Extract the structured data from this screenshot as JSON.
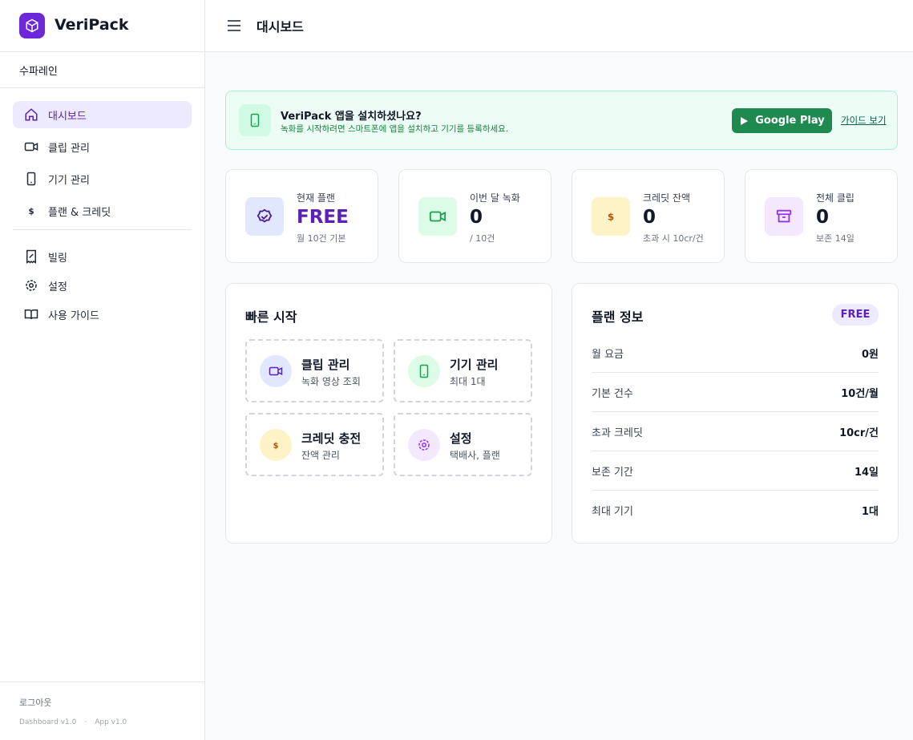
{
  "sidebar": {
    "brand": "VeriPack",
    "company": "수파레인",
    "nav": [
      {
        "label": "대시보드",
        "active": true
      },
      {
        "label": "클립 관리"
      },
      {
        "label": "기기 관리"
      },
      {
        "label": "플랜 & 크레딧"
      }
    ],
    "nav2": [
      {
        "label": "빌링"
      },
      {
        "label": "설정"
      },
      {
        "label": "사용 가이드"
      }
    ],
    "logout": "로그아웃",
    "versions": [
      "Dashboard v1.0",
      "App v1.0"
    ],
    "version_sep": "·"
  },
  "header": {
    "title": "대시보드"
  },
  "banner": {
    "title": "VeriPack 앱을 설치하셨나요?",
    "text": "녹화를 시작하려면 스마트폰에 앱을 설치하고 기기를 등록하세요.",
    "button": "Google Play",
    "link": "가이드 보기"
  },
  "stats": [
    {
      "label": "현재 플랜",
      "value": "FREE",
      "sub": "월 10건 기본"
    },
    {
      "label": "이번 달 녹화",
      "value": "0",
      "sub": "/ 10건"
    },
    {
      "label": "크레딧 잔액",
      "value": "0",
      "sub": "초과 시 10cr/건"
    },
    {
      "label": "전체 클립",
      "value": "0",
      "sub": "보존 14일"
    }
  ],
  "quick_start": {
    "title": "빠른 시작",
    "items": [
      {
        "title": "클립 관리",
        "sub": "녹화 영상 조회"
      },
      {
        "title": "기기 관리",
        "sub": "최대 1대"
      },
      {
        "title": "크레딧 충전",
        "sub": "잔액 관리"
      },
      {
        "title": "설정",
        "sub": "택배사, 플랜"
      }
    ]
  },
  "plan_info": {
    "title": "플랜 정보",
    "badge": "FREE",
    "rows": [
      [
        "월 요금",
        "0원"
      ],
      [
        "기본 건수",
        "10건/월"
      ],
      [
        "초과 크레딧",
        "10cr/건"
      ],
      [
        "보존 기간",
        "14일"
      ],
      [
        "최대 기기",
        "1대"
      ]
    ]
  }
}
